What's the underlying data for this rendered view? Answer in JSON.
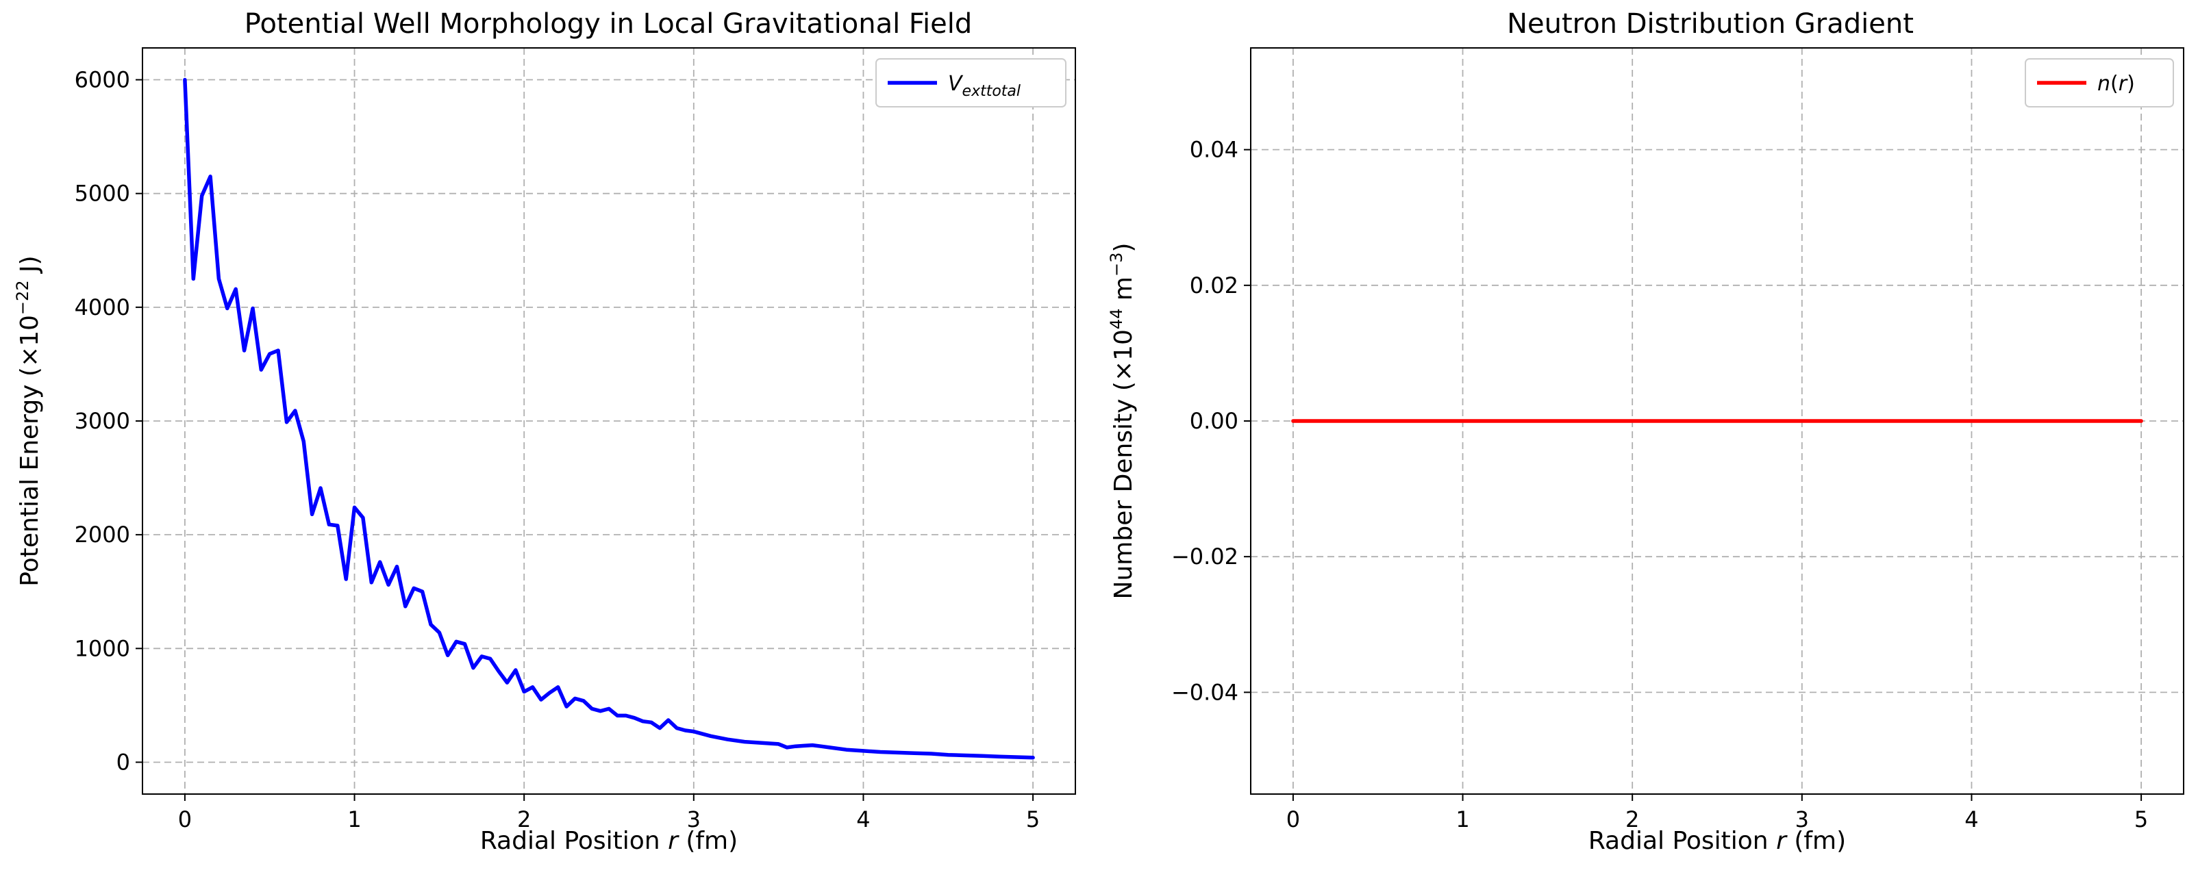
{
  "chart_data": [
    {
      "type": "line",
      "title": "Potential Well Morphology in Local Gravitational Field",
      "xlabel_parts": [
        "Radial Position ",
        "r",
        " (fm)"
      ],
      "ylabel_parts": [
        "Potential Energy (×10",
        "−22",
        " J)"
      ],
      "xlim": [
        -0.25,
        5.25
      ],
      "ylim": [
        -280,
        6280
      ],
      "xticks": [
        0,
        1,
        2,
        3,
        4,
        5
      ],
      "xtick_labels": [
        "0",
        "1",
        "2",
        "3",
        "4",
        "5"
      ],
      "yticks": [
        0,
        1000,
        2000,
        3000,
        4000,
        5000,
        6000
      ],
      "ytick_labels": [
        "0",
        "1000",
        "2000",
        "3000",
        "4000",
        "5000",
        "6000"
      ],
      "grid": true,
      "legend_position": "top-right",
      "series": [
        {
          "name_main": "V",
          "name_sub": "exttotal",
          "color": "#0000ff",
          "x": [
            0,
            0.05,
            0.1,
            0.15,
            0.2,
            0.25,
            0.3,
            0.35,
            0.4,
            0.45,
            0.5,
            0.55,
            0.6,
            0.65,
            0.7,
            0.75,
            0.8,
            0.85,
            0.9,
            0.95,
            1.0,
            1.05,
            1.1,
            1.15,
            1.2,
            1.25,
            1.3,
            1.35,
            1.4,
            1.45,
            1.5,
            1.55,
            1.6,
            1.65,
            1.7,
            1.75,
            1.8,
            1.85,
            1.9,
            1.95,
            2.0,
            2.05,
            2.1,
            2.15,
            2.2,
            2.25,
            2.3,
            2.35,
            2.4,
            2.45,
            2.5,
            2.55,
            2.6,
            2.65,
            2.7,
            2.75,
            2.8,
            2.85,
            2.9,
            2.95,
            3.0,
            3.1,
            3.2,
            3.3,
            3.4,
            3.5,
            3.55,
            3.6,
            3.65,
            3.7,
            3.75,
            3.8,
            3.9,
            4.0,
            4.1,
            4.2,
            4.3,
            4.4,
            4.5,
            4.6,
            4.7,
            4.8,
            4.9,
            5.0
          ],
          "y": [
            6000,
            4250,
            4980,
            5150,
            4250,
            3990,
            4160,
            3620,
            3990,
            3450,
            3590,
            3620,
            2990,
            3090,
            2820,
            2180,
            2410,
            2090,
            2080,
            1610,
            2240,
            2150,
            1580,
            1760,
            1560,
            1720,
            1370,
            1530,
            1500,
            1210,
            1140,
            940,
            1060,
            1040,
            830,
            930,
            910,
            800,
            700,
            810,
            620,
            660,
            550,
            610,
            660,
            490,
            560,
            540,
            470,
            450,
            470,
            410,
            410,
            390,
            360,
            350,
            300,
            370,
            300,
            280,
            270,
            230,
            200,
            180,
            170,
            160,
            130,
            140,
            145,
            150,
            140,
            130,
            110,
            100,
            90,
            85,
            80,
            75,
            65,
            60,
            55,
            50,
            45,
            40
          ]
        }
      ]
    },
    {
      "type": "line",
      "title": "Neutron Distribution Gradient",
      "xlabel_parts": [
        "Radial Position ",
        "r",
        " (fm)"
      ],
      "ylabel_parts": [
        "Number Density (×10",
        "44",
        " m",
        "−3",
        ")"
      ],
      "xlim": [
        -0.25,
        5.25
      ],
      "ylim": [
        -0.055,
        0.055
      ],
      "xticks": [
        0,
        1,
        2,
        3,
        4,
        5
      ],
      "xtick_labels": [
        "0",
        "1",
        "2",
        "3",
        "4",
        "5"
      ],
      "yticks": [
        -0.04,
        -0.02,
        0,
        0.02,
        0.04
      ],
      "ytick_labels": [
        "−0.04",
        "−0.02",
        "0.00",
        "0.02",
        "0.04"
      ],
      "grid": true,
      "legend_position": "top-right",
      "series": [
        {
          "name_main": "n",
          "name_arg": "r",
          "color": "#ff0000",
          "x": [
            0,
            5
          ],
          "y": [
            0,
            0
          ]
        }
      ]
    }
  ]
}
